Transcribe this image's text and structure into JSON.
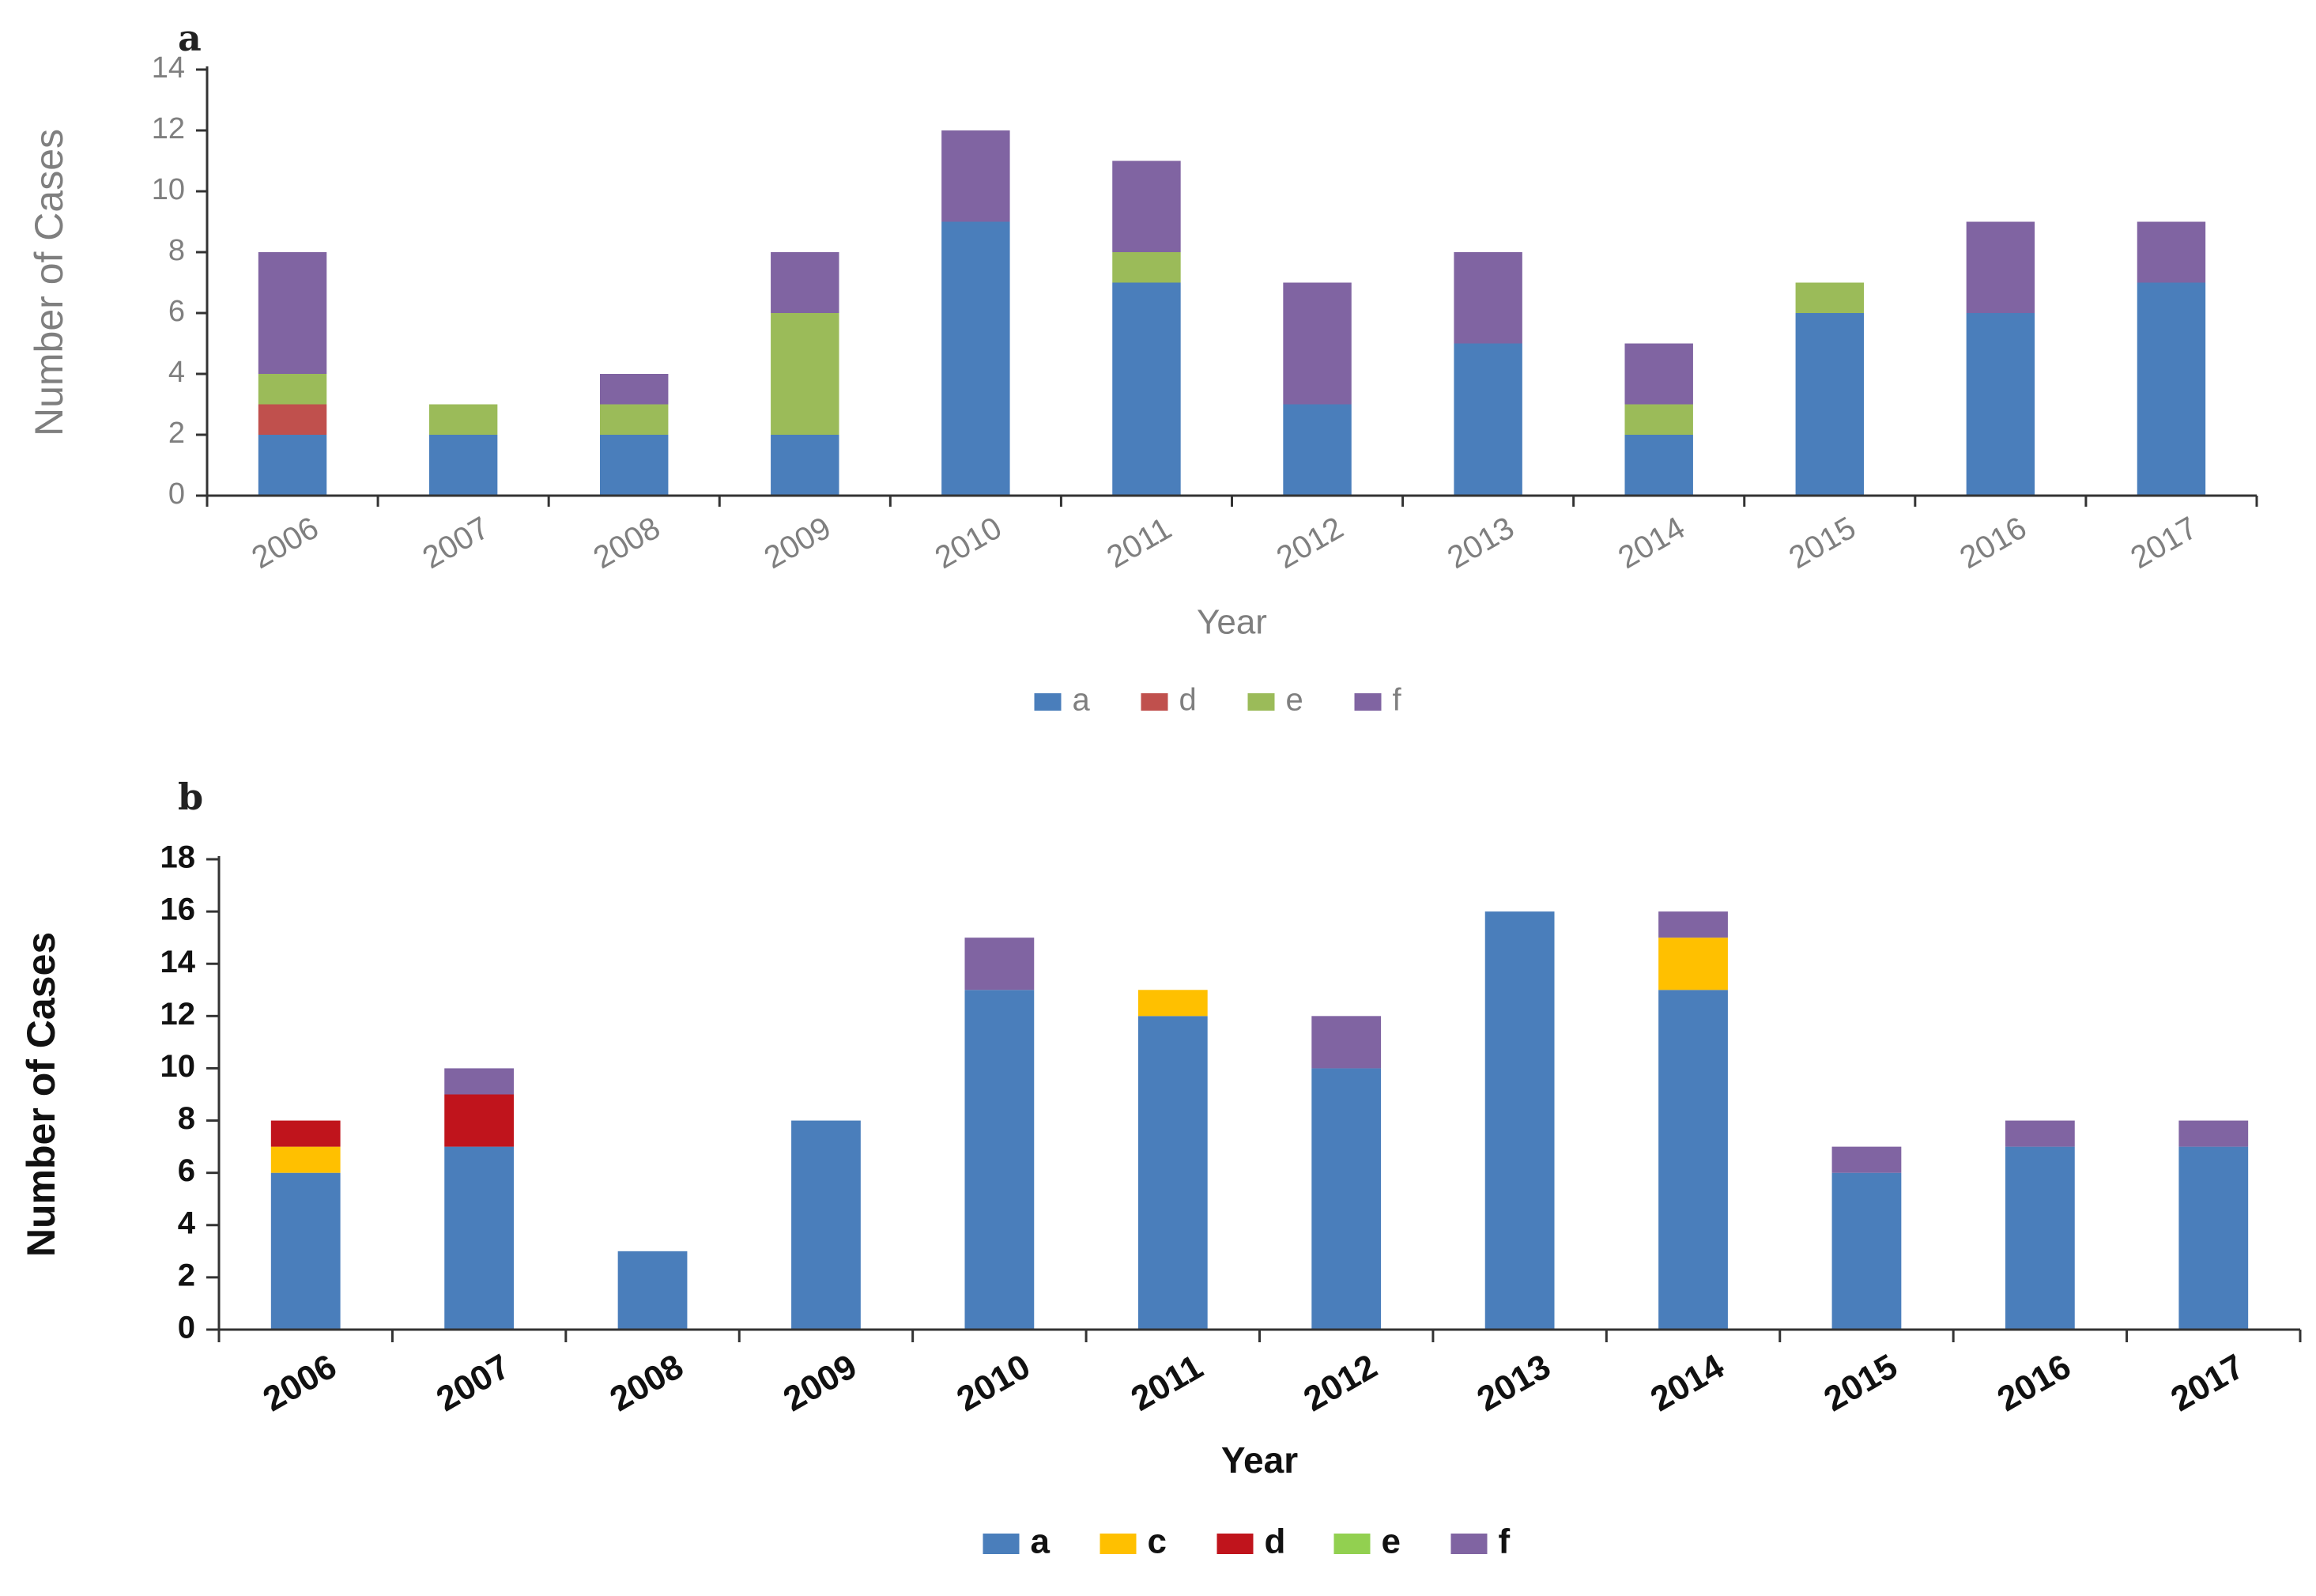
{
  "chart_data": [
    {
      "type": "bar",
      "stacked": true,
      "panel_label": "a",
      "xlabel": "Year",
      "ylabel": "Number of Cases",
      "ylim": [
        0,
        14
      ],
      "yticks": [
        0,
        2,
        4,
        6,
        8,
        10,
        12,
        14
      ],
      "grid": false,
      "legend_position": "bottom",
      "categories": [
        "2006",
        "2007",
        "2008",
        "2009",
        "2010",
        "2011",
        "2012",
        "2013",
        "2014",
        "2015",
        "2016",
        "2017"
      ],
      "series": [
        {
          "name": "a",
          "color": "#4a7ebb",
          "values": [
            2,
            2,
            2,
            2,
            9,
            7,
            3,
            5,
            2,
            6,
            6,
            7
          ]
        },
        {
          "name": "d",
          "color": "#c0504d",
          "values": [
            1,
            0,
            0,
            0,
            0,
            0,
            0,
            0,
            0,
            0,
            0,
            0
          ]
        },
        {
          "name": "e",
          "color": "#9bbb59",
          "values": [
            1,
            1,
            1,
            4,
            0,
            1,
            0,
            0,
            1,
            1,
            0,
            0
          ]
        },
        {
          "name": "f",
          "color": "#8064a2",
          "values": [
            4,
            0,
            1,
            2,
            3,
            3,
            4,
            3,
            2,
            0,
            3,
            2
          ]
        }
      ],
      "style": {
        "axis_text_color": "#7f7f7f",
        "label_weight": "normal"
      }
    },
    {
      "type": "bar",
      "stacked": true,
      "panel_label": "b",
      "xlabel": "Year",
      "ylabel": "Number of Cases",
      "ylim": [
        0,
        18
      ],
      "yticks": [
        0,
        2,
        4,
        6,
        8,
        10,
        12,
        14,
        16,
        18
      ],
      "grid": false,
      "legend_position": "bottom",
      "categories": [
        "2006",
        "2007",
        "2008",
        "2009",
        "2010",
        "2011",
        "2012",
        "2013",
        "2014",
        "2015",
        "2016",
        "2017"
      ],
      "series": [
        {
          "name": "a",
          "color": "#4a7ebb",
          "values": [
            6,
            7,
            3,
            8,
            13,
            12,
            10,
            16,
            13,
            6,
            7,
            7
          ]
        },
        {
          "name": "c",
          "color": "#ffc000",
          "values": [
            1,
            0,
            0,
            0,
            0,
            1,
            0,
            0,
            2,
            0,
            0,
            0
          ]
        },
        {
          "name": "d",
          "color": "#c0141c",
          "values": [
            1,
            2,
            0,
            0,
            0,
            0,
            0,
            0,
            0,
            0,
            0,
            0
          ]
        },
        {
          "name": "e",
          "color": "#92d050",
          "values": [
            0,
            0,
            0,
            0,
            0,
            0,
            0,
            0,
            0,
            0,
            0,
            0
          ]
        },
        {
          "name": "f",
          "color": "#8064a2",
          "values": [
            0,
            1,
            0,
            0,
            2,
            0,
            2,
            0,
            1,
            1,
            1,
            1
          ]
        }
      ],
      "style": {
        "axis_text_color": "#111111",
        "label_weight": "bold"
      }
    }
  ]
}
